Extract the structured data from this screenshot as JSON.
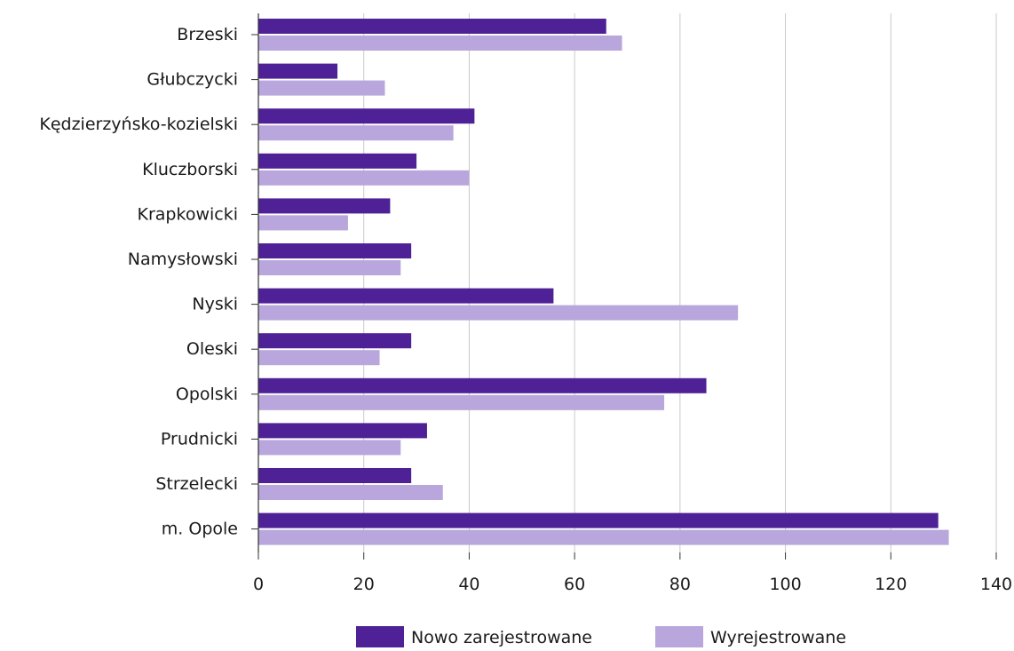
{
  "chart_data": {
    "type": "bar",
    "orientation": "horizontal",
    "categories": [
      "Brzeski",
      "Głubczycki",
      "Kędzierzyńsko-kozielski",
      "Kluczborski",
      "Krapkowicki",
      "Namysłowski",
      "Nyski",
      "Oleski",
      "Opolski",
      "Prudnicki",
      "Strzelecki",
      "m. Opole"
    ],
    "series": [
      {
        "name": "Nowo zarejestrowane",
        "color": "#4f2196",
        "values": [
          66,
          15,
          41,
          30,
          25,
          29,
          56,
          29,
          85,
          32,
          29,
          129
        ]
      },
      {
        "name": "Wyrejestrowane",
        "color": "#b8a6dc",
        "values": [
          69,
          24,
          37,
          40,
          17,
          27,
          91,
          23,
          77,
          27,
          35,
          131
        ]
      }
    ],
    "xlim": [
      0,
      140
    ],
    "xticks": [
      "0",
      "20",
      "40",
      "60",
      "80",
      "100",
      "120",
      "140"
    ],
    "grid": true,
    "legend_position": "bottom"
  }
}
